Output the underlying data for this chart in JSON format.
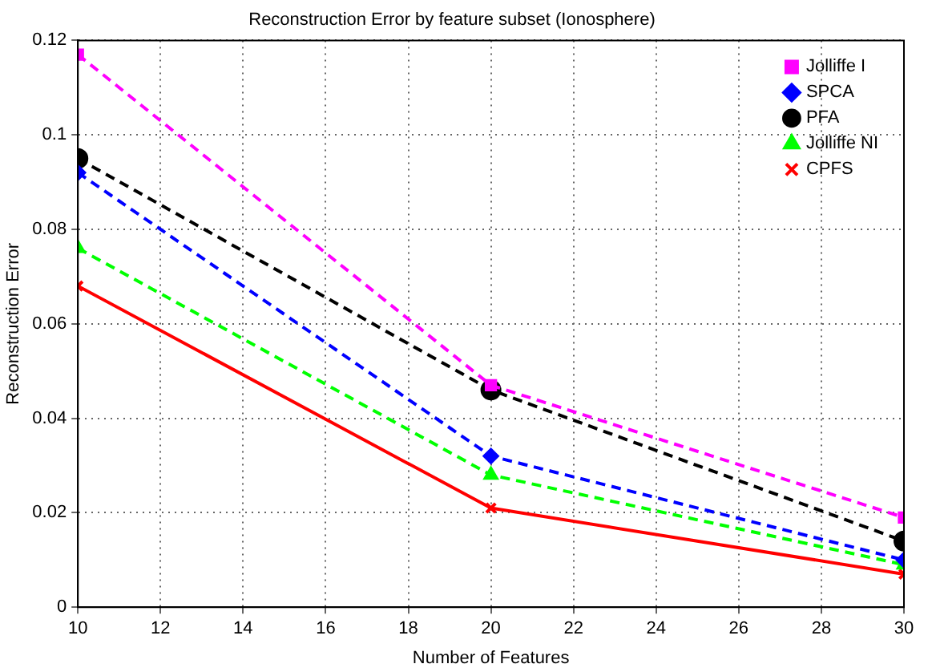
{
  "chart_data": {
    "type": "line",
    "title": "Reconstruction Error by feature subset (Ionosphere)",
    "xlabel": "Number of Features",
    "ylabel": "Reconstruction Error",
    "x": [
      10,
      20,
      30
    ],
    "series": [
      {
        "name": "Jolliffe I",
        "color": "#ff00ff",
        "values": [
          0.117,
          0.047,
          0.019
        ],
        "marker": "square",
        "line_style": "dashed"
      },
      {
        "name": "SPCA",
        "color": "#0000ff",
        "values": [
          0.092,
          0.032,
          0.01
        ],
        "marker": "diamond",
        "line_style": "dashed"
      },
      {
        "name": "PFA",
        "color": "#000000",
        "values": [
          0.095,
          0.046,
          0.014
        ],
        "marker": "circle",
        "line_style": "dashed"
      },
      {
        "name": "Jolliffe NI",
        "color": "#00ff00",
        "values": [
          0.076,
          0.028,
          0.009
        ],
        "marker": "triangle",
        "line_style": "dashed"
      },
      {
        "name": "CPFS",
        "color": "#ff0000",
        "values": [
          0.068,
          0.021,
          0.007
        ],
        "marker": "cross",
        "line_style": "solid"
      }
    ],
    "xlim": [
      10,
      30
    ],
    "xticks": [
      10,
      12,
      14,
      16,
      18,
      20,
      22,
      24,
      26,
      28,
      30
    ],
    "ylim": [
      0,
      0.12
    ],
    "yticks": [
      0,
      0.02,
      0.04,
      0.06,
      0.08,
      0.1,
      0.12
    ],
    "grid": true,
    "legend": "top right"
  }
}
